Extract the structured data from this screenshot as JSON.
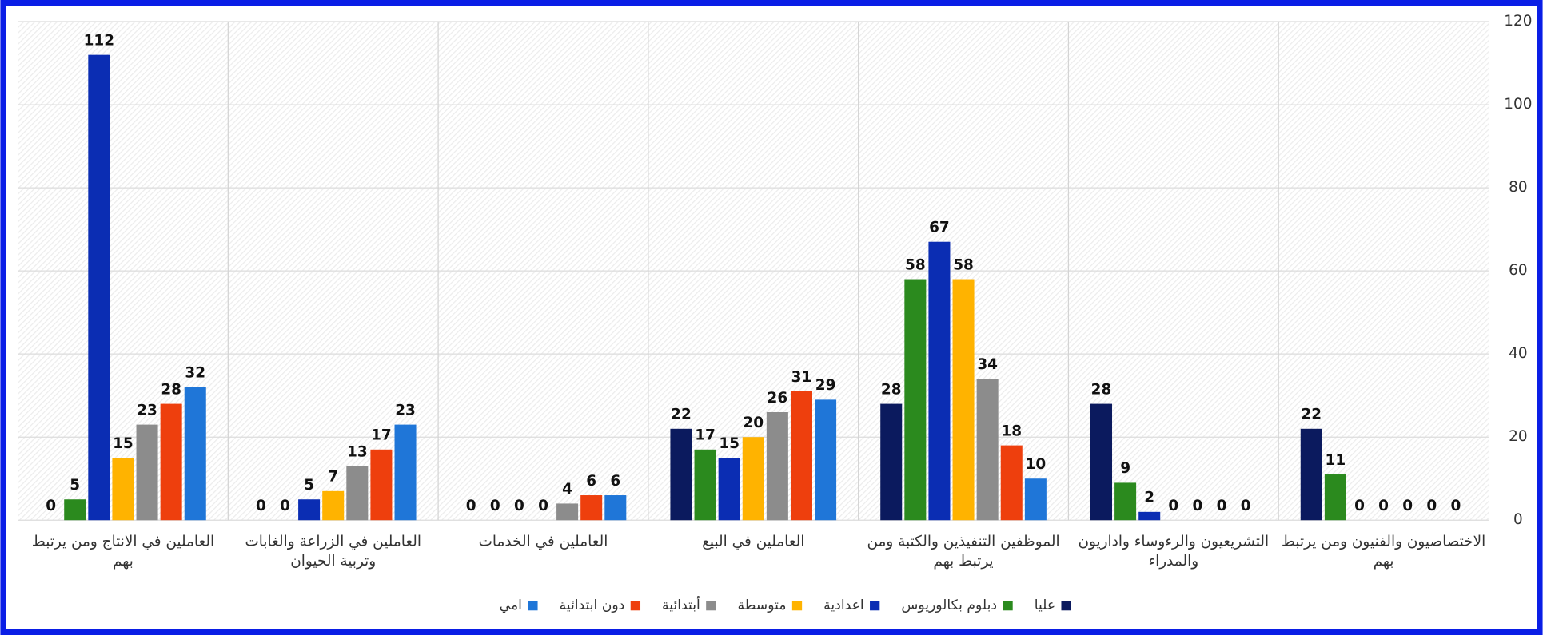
{
  "chart_data": {
    "type": "bar",
    "categories": [
      "الاختصاصيون والفنيون ومن يرتبط بهم",
      "التشريعيون والرءوساء واداريون والمدراء",
      "الموظفين التنفيذين والكتبة ومن يرتبط بهم",
      "العاملين في البيع",
      "العاملين في الخدمات",
      "العاملين في الزراعة والغابات وتربية الحيوان",
      "العاملين في الانتاج ومن يرتبط بهم"
    ],
    "series": [
      {
        "name": "عليا",
        "color": "#0b1a5e",
        "values": [
          22,
          28,
          28,
          22,
          0,
          0,
          0
        ]
      },
      {
        "name": "دبلوم بكالوريوس",
        "color": "#2b8a1e",
        "values": [
          11,
          9,
          58,
          17,
          0,
          0,
          5
        ]
      },
      {
        "name": "اعدادية",
        "color": "#0b2db3",
        "values": [
          0,
          2,
          67,
          15,
          0,
          5,
          112
        ]
      },
      {
        "name": "متوسطة",
        "color": "#ffb300",
        "values": [
          0,
          0,
          58,
          20,
          0,
          7,
          15
        ]
      },
      {
        "name": "أبتدائية",
        "color": "#8c8c8c",
        "values": [
          0,
          0,
          34,
          26,
          4,
          13,
          23
        ]
      },
      {
        "name": "دون ابتدائية",
        "color": "#ee3f0d",
        "values": [
          0,
          0,
          18,
          31,
          6,
          17,
          28
        ]
      },
      {
        "name": "امي",
        "color": "#1f76d8",
        "values": [
          0,
          0,
          10,
          29,
          6,
          23,
          32
        ]
      }
    ],
    "ylim": [
      0,
      120
    ],
    "yticks": [
      0,
      20,
      40,
      60,
      80,
      100,
      120
    ],
    "grid": true,
    "legend": "bottom"
  }
}
